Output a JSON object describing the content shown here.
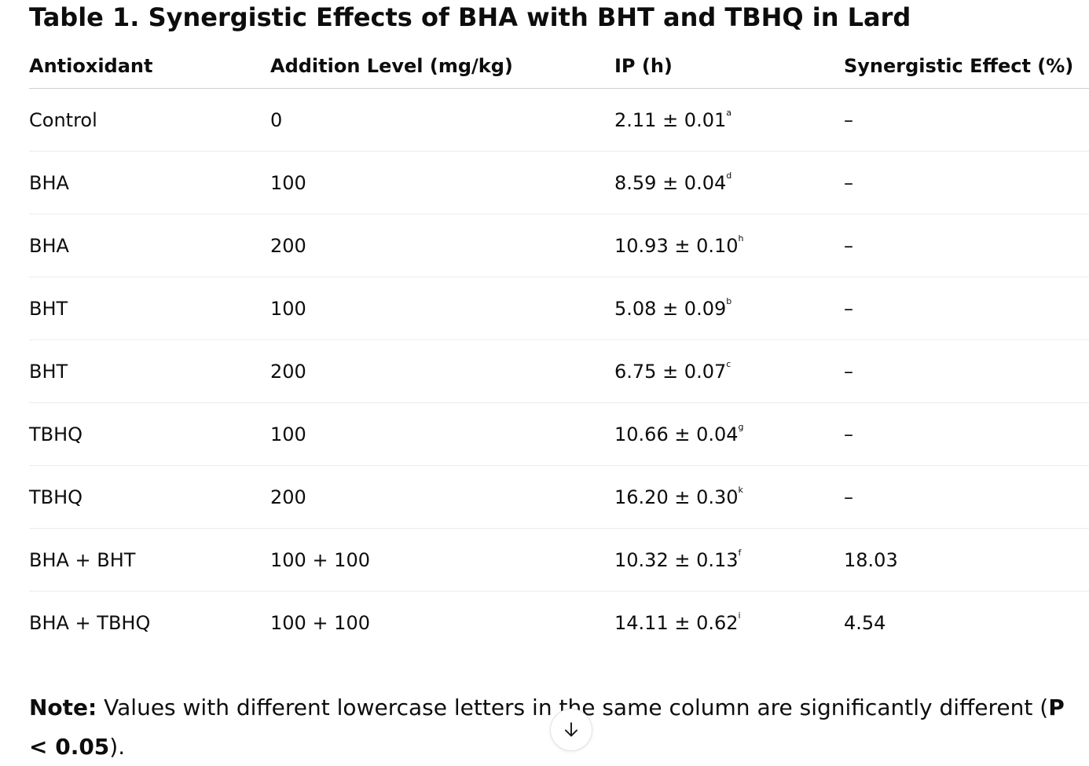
{
  "title": "Table 1. Synergistic Effects of BHA with BHT and TBHQ in Lard",
  "table": {
    "headers": [
      "Antioxidant",
      "Addition Level (mg/kg)",
      "IP (h)",
      "Synergistic Effect (%)"
    ],
    "rows": [
      {
        "antioxidant": "Control",
        "level": "0",
        "ip": "2.11 ± 0.01",
        "ip_sup": "a",
        "synergy": "–"
      },
      {
        "antioxidant": "BHA",
        "level": "100",
        "ip": "8.59 ± 0.04",
        "ip_sup": "d",
        "synergy": "–"
      },
      {
        "antioxidant": "BHA",
        "level": "200",
        "ip": "10.93 ± 0.10",
        "ip_sup": "h",
        "synergy": "–"
      },
      {
        "antioxidant": "BHT",
        "level": "100",
        "ip": "5.08 ± 0.09",
        "ip_sup": "b",
        "synergy": "–"
      },
      {
        "antioxidant": "BHT",
        "level": "200",
        "ip": "6.75 ± 0.07",
        "ip_sup": "c",
        "synergy": "–"
      },
      {
        "antioxidant": "TBHQ",
        "level": "100",
        "ip": "10.66 ± 0.04",
        "ip_sup": "g",
        "synergy": "–"
      },
      {
        "antioxidant": "TBHQ",
        "level": "200",
        "ip": "16.20 ± 0.30",
        "ip_sup": "k",
        "synergy": "–"
      },
      {
        "antioxidant": "BHA + BHT",
        "level": "100 + 100",
        "ip": "10.32 ± 0.13",
        "ip_sup": "f",
        "synergy": "18.03"
      },
      {
        "antioxidant": "BHA + TBHQ",
        "level": "100 + 100",
        "ip": "14.11 ± 0.62",
        "ip_sup": "i",
        "synergy": "4.54"
      }
    ]
  },
  "note": {
    "label": "Note:",
    "text_before": " Values with different lowercase letters in the same column are significantly different (",
    "emphasis": "P < 0.05",
    "text_after": ")."
  },
  "scroll_button": {
    "icon": "arrow-down-icon"
  }
}
